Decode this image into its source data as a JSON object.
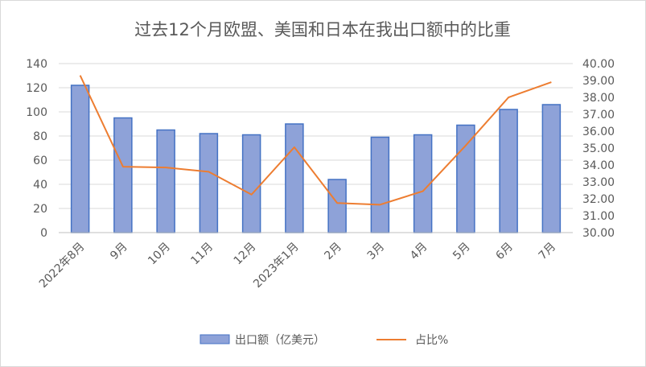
{
  "chart_data": {
    "type": "bar",
    "title": "过去12个月欧盟、美国和日本在我出口额中的比重",
    "categories": [
      "2022年8月",
      "9月",
      "10月",
      "11月",
      "12月",
      "2023年1月",
      "2月",
      "3月",
      "4月",
      "5月",
      "6月",
      "7月"
    ],
    "series": [
      {
        "name": "出口额（亿美元）",
        "type": "bar",
        "axis": "left",
        "color": "#8ea2d8",
        "values": [
          122,
          95,
          85,
          82,
          81,
          90,
          44,
          79,
          81,
          89,
          102,
          106
        ]
      },
      {
        "name": "占比%",
        "type": "line",
        "axis": "right",
        "color": "#ed7d31",
        "values": [
          39.3,
          33.9,
          33.85,
          33.6,
          32.25,
          35.05,
          31.75,
          31.65,
          32.45,
          35.15,
          38.0,
          38.9
        ]
      }
    ],
    "y_left": {
      "min": 0,
      "max": 140,
      "step": 20,
      "ticks": [
        "0",
        "20",
        "40",
        "60",
        "80",
        "100",
        "120",
        "140"
      ]
    },
    "y_right": {
      "min": 30,
      "max": 40,
      "step": 1,
      "ticks": [
        "30.00",
        "31.00",
        "32.00",
        "33.00",
        "34.00",
        "35.00",
        "36.00",
        "37.00",
        "38.00",
        "39.00",
        "40.00"
      ]
    },
    "grid": true,
    "legend_position": "bottom"
  }
}
